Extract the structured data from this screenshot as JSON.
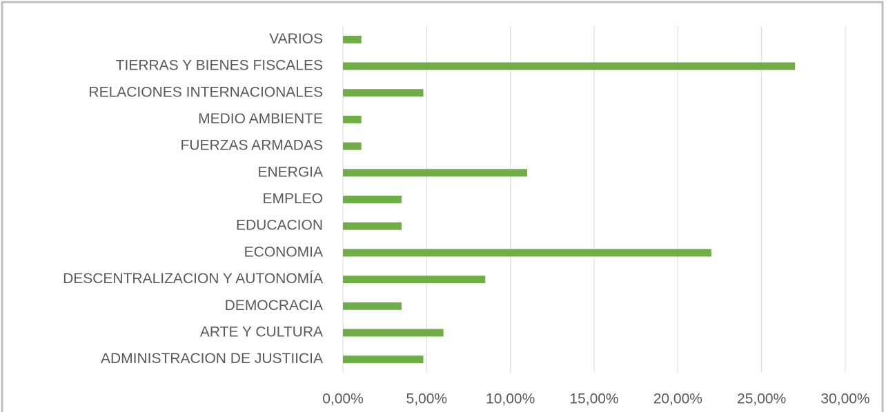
{
  "chart_data": {
    "type": "bar",
    "orientation": "horizontal",
    "categories": [
      "VARIOS",
      "TIERRAS Y BIENES FISCALES",
      "RELACIONES INTERNACIONALES",
      "MEDIO AMBIENTE",
      "FUERZAS ARMADAS",
      "ENERGIA",
      "EMPLEO",
      "EDUCACION",
      "ECONOMIA",
      "DESCENTRALIZACION Y AUTONOMÍA",
      "DEMOCRACIA",
      "ARTE Y CULTURA",
      "ADMINISTRACION DE JUSTIICIA"
    ],
    "values": [
      1.1,
      27.0,
      4.8,
      1.1,
      1.1,
      11.0,
      3.5,
      3.5,
      22.0,
      8.5,
      3.5,
      6.0,
      4.8
    ],
    "color": "#70ad47",
    "xlim": [
      0,
      30
    ],
    "xticks": [
      {
        "value": 0,
        "label": "0,00%"
      },
      {
        "value": 5,
        "label": "5,00%"
      },
      {
        "value": 10,
        "label": "10,00%"
      },
      {
        "value": 15,
        "label": "15,00%"
      },
      {
        "value": 20,
        "label": "20,00%"
      },
      {
        "value": 25,
        "label": "25,00%"
      },
      {
        "value": 30,
        "label": "30,00%"
      }
    ],
    "grid": true
  }
}
